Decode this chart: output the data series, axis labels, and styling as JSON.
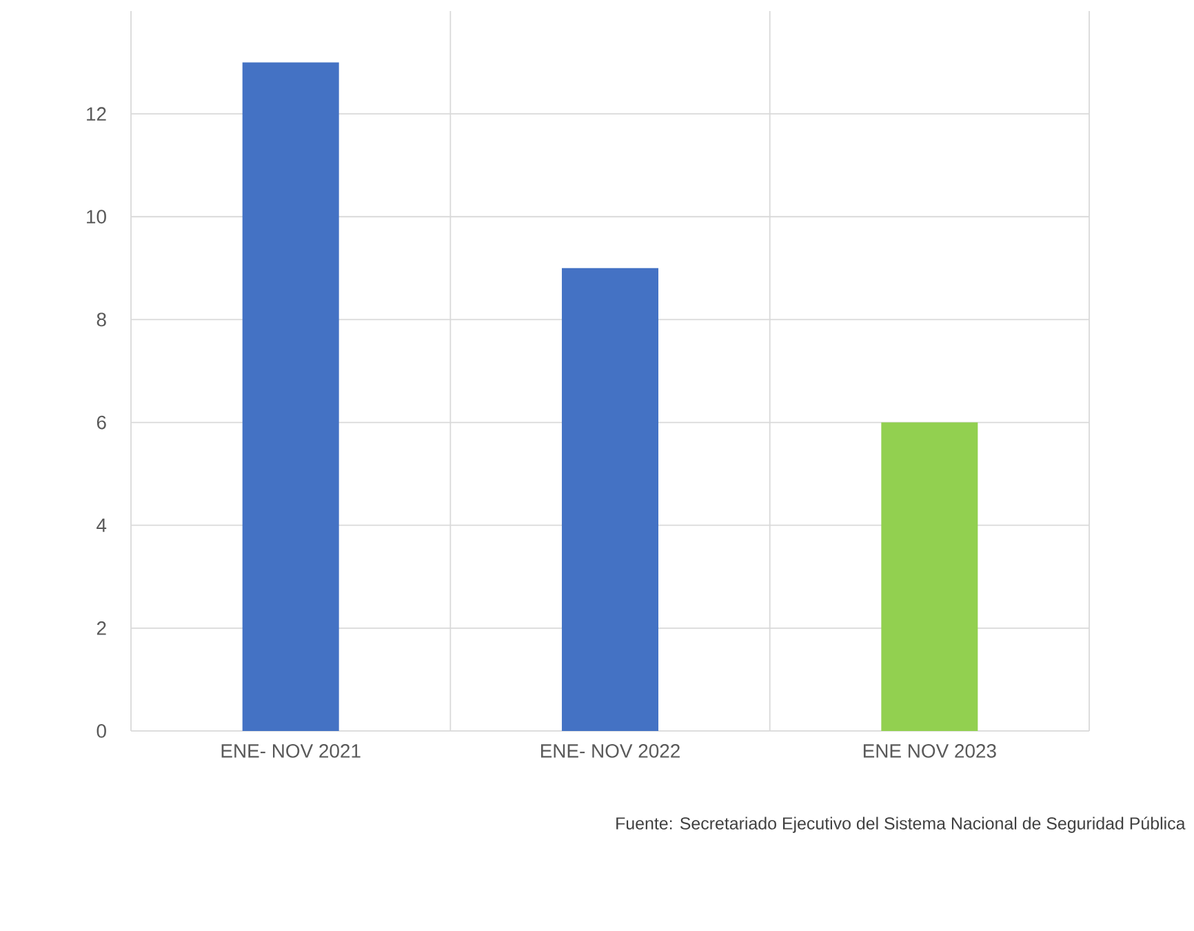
{
  "chart_data": {
    "type": "bar",
    "categories": [
      "ENE- NOV 2021",
      "ENE- NOV 2022",
      "ENE NOV 2023"
    ],
    "values": [
      13,
      9,
      6
    ],
    "colors": [
      "#4472c4",
      "#4472c4",
      "#92d050"
    ],
    "ylim": [
      0,
      14
    ],
    "yticks": [
      0,
      2,
      4,
      6,
      8,
      10,
      12
    ],
    "grid": true,
    "annotations": [
      "Fuente: Secretariado Ejecutivo del Sistema Nacional de Seguridad Pública"
    ]
  }
}
